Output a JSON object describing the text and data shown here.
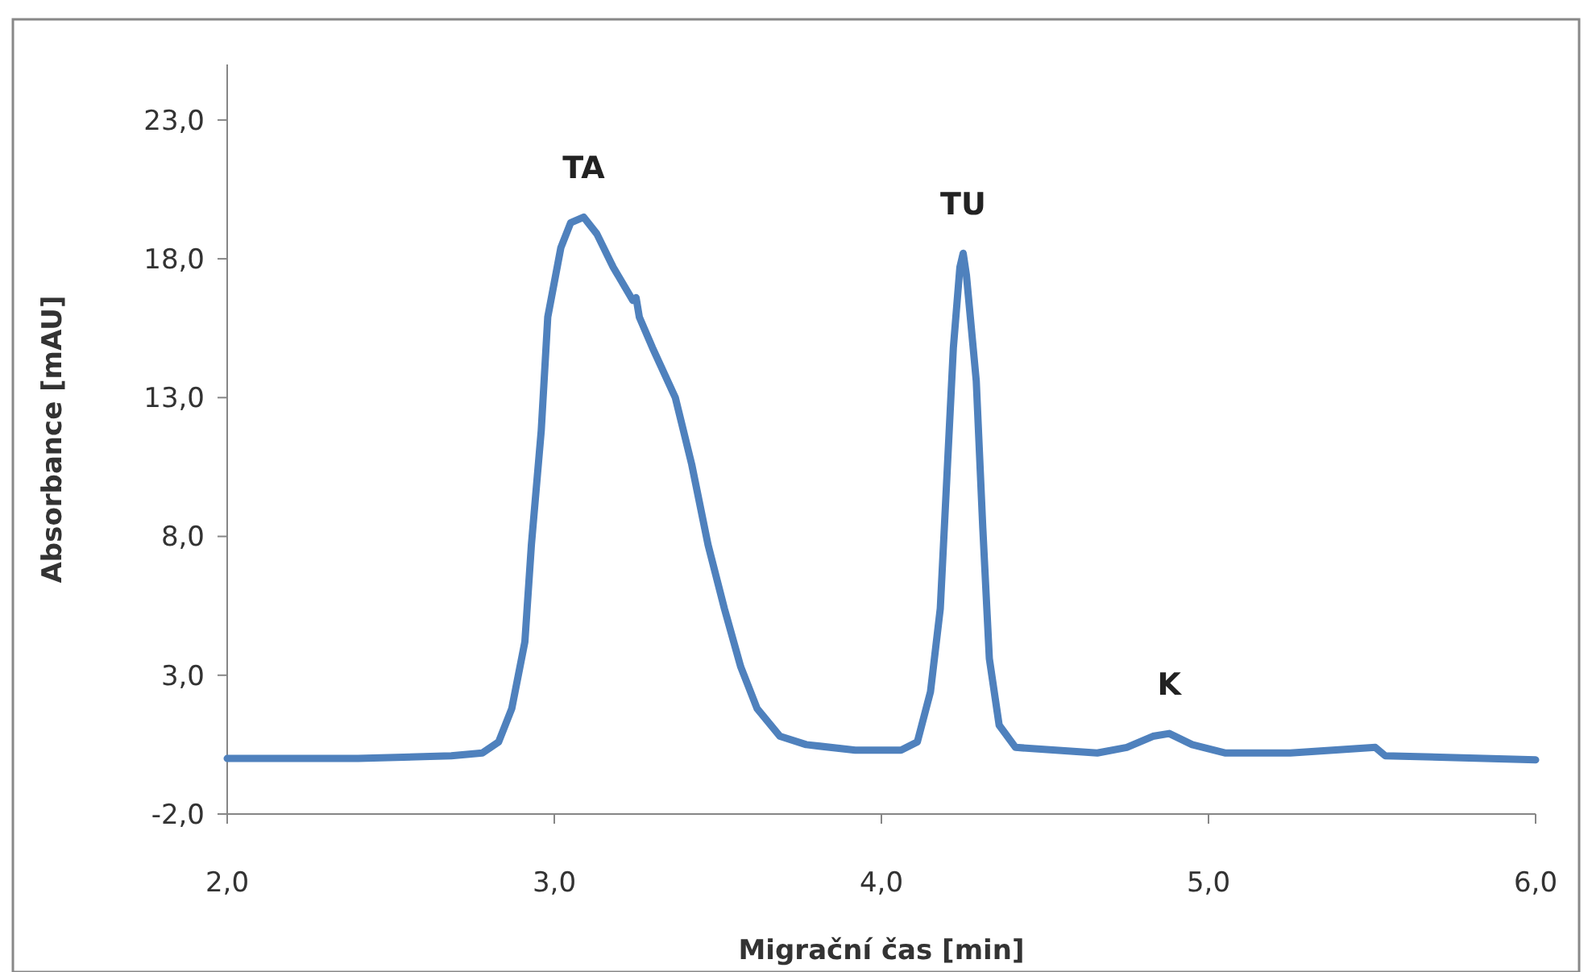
{
  "chart_data": {
    "type": "line",
    "xlabel": "Migrační čas [min]",
    "ylabel": "Absorbance [mAU]",
    "xlim": [
      2,
      6
    ],
    "ylim": [
      -2,
      25
    ],
    "xticks": [
      {
        "value": 2,
        "label": "2,0"
      },
      {
        "value": 3,
        "label": "3,0"
      },
      {
        "value": 4,
        "label": "4,0"
      },
      {
        "value": 5,
        "label": "5,0"
      },
      {
        "value": 6,
        "label": "6,0"
      }
    ],
    "yticks": [
      {
        "value": -2,
        "label": "-2,0"
      },
      {
        "value": 3,
        "label": "3,0"
      },
      {
        "value": 8,
        "label": "8,0"
      },
      {
        "value": 13,
        "label": "13,0"
      },
      {
        "value": 18,
        "label": "18,0"
      },
      {
        "value": 23,
        "label": "23,0"
      }
    ],
    "grid": false,
    "marker": "none",
    "line_style": "solid",
    "annotations": [
      {
        "text": "TA",
        "x": 3.09,
        "y": 19.5
      },
      {
        "text": "TU",
        "x": 4.25,
        "y": 18.2
      },
      {
        "text": "K",
        "x": 4.88,
        "y": 0.9
      }
    ],
    "series": [
      {
        "color": "#4f81bd",
        "x": [
          2.0,
          2.1,
          2.4,
          2.685,
          2.78,
          2.83,
          2.87,
          2.91,
          2.93,
          2.96,
          2.98,
          3.02,
          3.05,
          3.09,
          3.13,
          3.18,
          3.24,
          3.25,
          3.26,
          3.3,
          3.37,
          3.42,
          3.47,
          3.52,
          3.57,
          3.62,
          3.69,
          3.77,
          3.92,
          4.06,
          4.11,
          4.15,
          4.18,
          4.2,
          4.22,
          4.24,
          4.25,
          4.26,
          4.29,
          4.31,
          4.33,
          4.36,
          4.41,
          4.66,
          4.75,
          4.83,
          4.88,
          4.95,
          5.05,
          5.25,
          5.51,
          5.54,
          6.0
        ],
        "values": [
          0.0,
          0.0,
          0.0,
          0.1,
          0.2,
          0.6,
          1.8,
          4.2,
          7.7,
          11.8,
          15.9,
          18.4,
          19.3,
          19.5,
          18.9,
          17.7,
          16.5,
          16.6,
          15.9,
          14.8,
          13.0,
          10.6,
          7.7,
          5.4,
          3.3,
          1.8,
          0.8,
          0.5,
          0.3,
          0.3,
          0.6,
          2.4,
          5.4,
          10.1,
          14.8,
          17.7,
          18.2,
          17.4,
          13.6,
          8.3,
          3.6,
          1.2,
          0.4,
          0.2,
          0.4,
          0.8,
          0.9,
          0.5,
          0.2,
          0.2,
          0.4,
          0.1,
          -0.05
        ]
      }
    ]
  }
}
